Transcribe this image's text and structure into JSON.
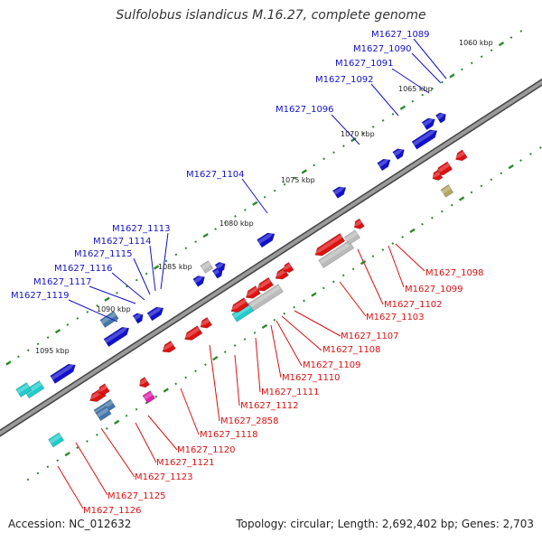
{
  "title": "Sulfolobus islandicus M.16.27, complete genome",
  "accession": "Accession: NC_012632",
  "summary": "Topology: circular; Length: 2,692,402 bp; Genes: 2,703",
  "colors": {
    "plus_strand": "#1111cc",
    "minus_strand": "#dd1111",
    "backbone": "#777777",
    "ticks": "#2a8a2a",
    "cyan_feature": "#22cccc",
    "gray_feature": "#bbbbbb",
    "steel_feature": "#4477aa",
    "magenta_feature": "#dd22aa",
    "olive_feature": "#b5a460"
  },
  "scale_labels": [
    "1060 kbp",
    "1065 kbp",
    "1070 kbp",
    "1075 kbp",
    "1080 kbp",
    "1085 kbp",
    "1090 kbp",
    "1095 kbp"
  ],
  "genes_plus": [
    "M1627_1089",
    "M1627_1090",
    "M1627_1091",
    "M1627_1092",
    "M1627_1096",
    "M1627_1104",
    "M1627_1113",
    "M1627_1114",
    "M1627_1115",
    "M1627_1116",
    "M1627_1117",
    "M1627_1119"
  ],
  "genes_minus": [
    "M1627_1098",
    "M1627_1099",
    "M1627_1102",
    "M1627_1103",
    "M1627_1107",
    "M1627_1108",
    "M1627_1109",
    "M1627_1110",
    "M1627_1111",
    "M1627_1112",
    "M1627_2858",
    "M1627_1118",
    "M1627_1120",
    "M1627_1121",
    "M1627_1123",
    "M1627_1125",
    "M1627_1126"
  ]
}
